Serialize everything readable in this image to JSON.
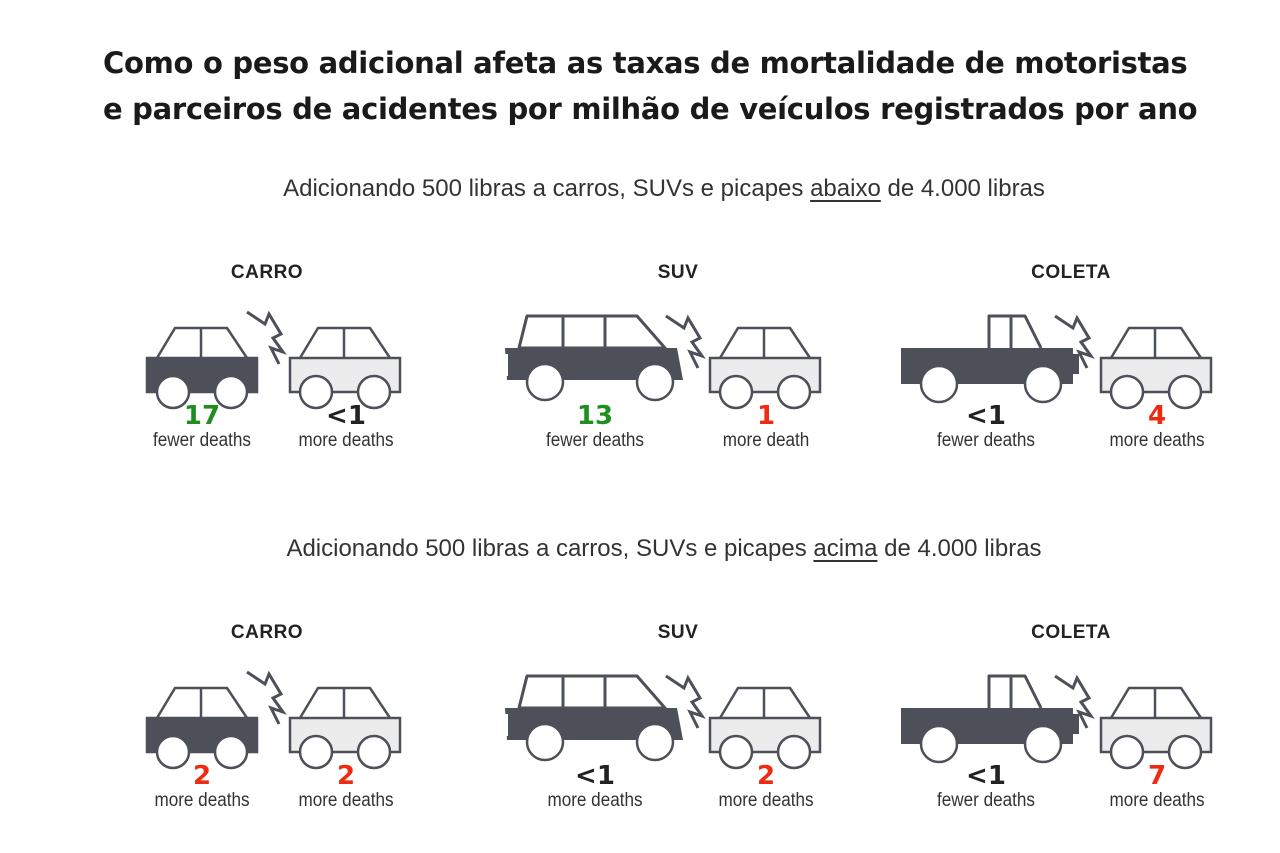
{
  "title": "Como o peso adicional afeta as taxas de mortalidade de motoristas e parceiros de acidentes por milhão de veículos registrados por ano",
  "colors": {
    "fewer": "#1e8f1e",
    "more": "#ee2a12",
    "neutral": "#222222",
    "vehicle_dark": "#4d5058",
    "vehicle_light": "#ececec"
  },
  "sections": [
    {
      "subtitle_before": "Adicionando 500 libras a carros, SUVs e picapes ",
      "subtitle_emph": "abaixo",
      "subtitle_after": " de 4.000 libras",
      "groups": [
        {
          "label": "CARRO",
          "vehicle": "car",
          "left": {
            "value": "17",
            "text": "fewer deaths",
            "tone": "fewer"
          },
          "right": {
            "value": "<1",
            "text": "more deaths",
            "tone": "neutral"
          }
        },
        {
          "label": "SUV",
          "vehicle": "suv",
          "left": {
            "value": "13",
            "text": "fewer deaths",
            "tone": "fewer"
          },
          "right": {
            "value": "1",
            "text": "more death",
            "tone": "more"
          }
        },
        {
          "label": "COLETA",
          "vehicle": "pickup",
          "left": {
            "value": "<1",
            "text": "fewer deaths",
            "tone": "neutral"
          },
          "right": {
            "value": "4",
            "text": "more deaths",
            "tone": "more"
          }
        }
      ]
    },
    {
      "subtitle_before": "Adicionando 500 libras a carros, SUVs e picapes ",
      "subtitle_emph": "acima",
      "subtitle_after": " de 4.000 libras",
      "groups": [
        {
          "label": "CARRO",
          "vehicle": "car",
          "left": {
            "value": "2",
            "text": "more deaths",
            "tone": "more"
          },
          "right": {
            "value": "2",
            "text": "more deaths",
            "tone": "more"
          }
        },
        {
          "label": "SUV",
          "vehicle": "suv",
          "left": {
            "value": "<1",
            "text": "more deaths",
            "tone": "neutral"
          },
          "right": {
            "value": "2",
            "text": "more deaths",
            "tone": "more"
          }
        },
        {
          "label": "COLETA",
          "vehicle": "pickup",
          "left": {
            "value": "<1",
            "text": "fewer deaths",
            "tone": "neutral"
          },
          "right": {
            "value": "7",
            "text": "more deaths",
            "tone": "more"
          }
        }
      ]
    }
  ]
}
